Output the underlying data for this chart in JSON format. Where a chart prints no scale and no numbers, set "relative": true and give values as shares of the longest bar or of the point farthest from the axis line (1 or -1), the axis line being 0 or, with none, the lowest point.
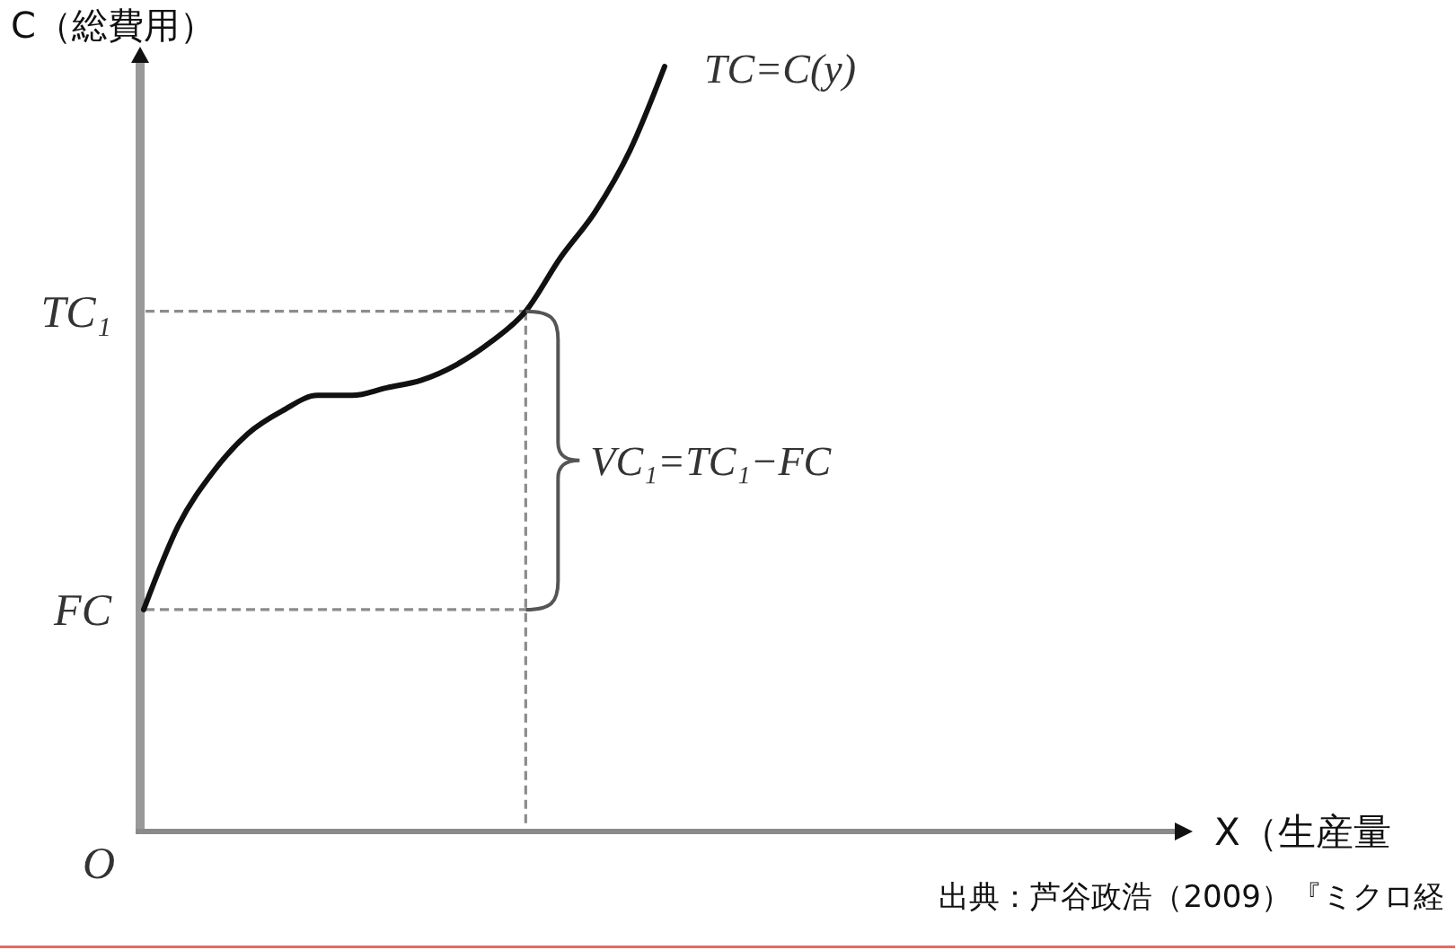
{
  "chart_data": {
    "type": "line",
    "categories": [
      null,
      null,
      null,
      null,
      null,
      null,
      null,
      null,
      null,
      null,
      null,
      null,
      null,
      null,
      null,
      null
    ],
    "relative": true,
    "series": [
      {
        "name": "TC=C(y)",
        "color": "#111111",
        "values": [
          0.29,
          0.4,
          0.47,
          0.52,
          0.55,
          0.57,
          0.57,
          0.58,
          0.59,
          0.61,
          0.64,
          0.68,
          0.75,
          0.81,
          0.89,
          1
        ]
      }
    ],
    "ref_lines": [
      {
        "axis": "y",
        "value": 0.68,
        "label": "TC₁",
        "color": "#8c8c8c",
        "line_style": "dashed"
      },
      {
        "axis": "y",
        "value": 0.29,
        "label": "FC",
        "color": "#8c8c8c",
        "line_style": "dashed"
      }
    ],
    "ylabel": "C（総費用）",
    "annotations": [
      "VC₁=TC₁−FC",
      "O",
      "X（生産量",
      "出典：芦谷政浩（2009）『ミクロ経"
    ]
  }
}
